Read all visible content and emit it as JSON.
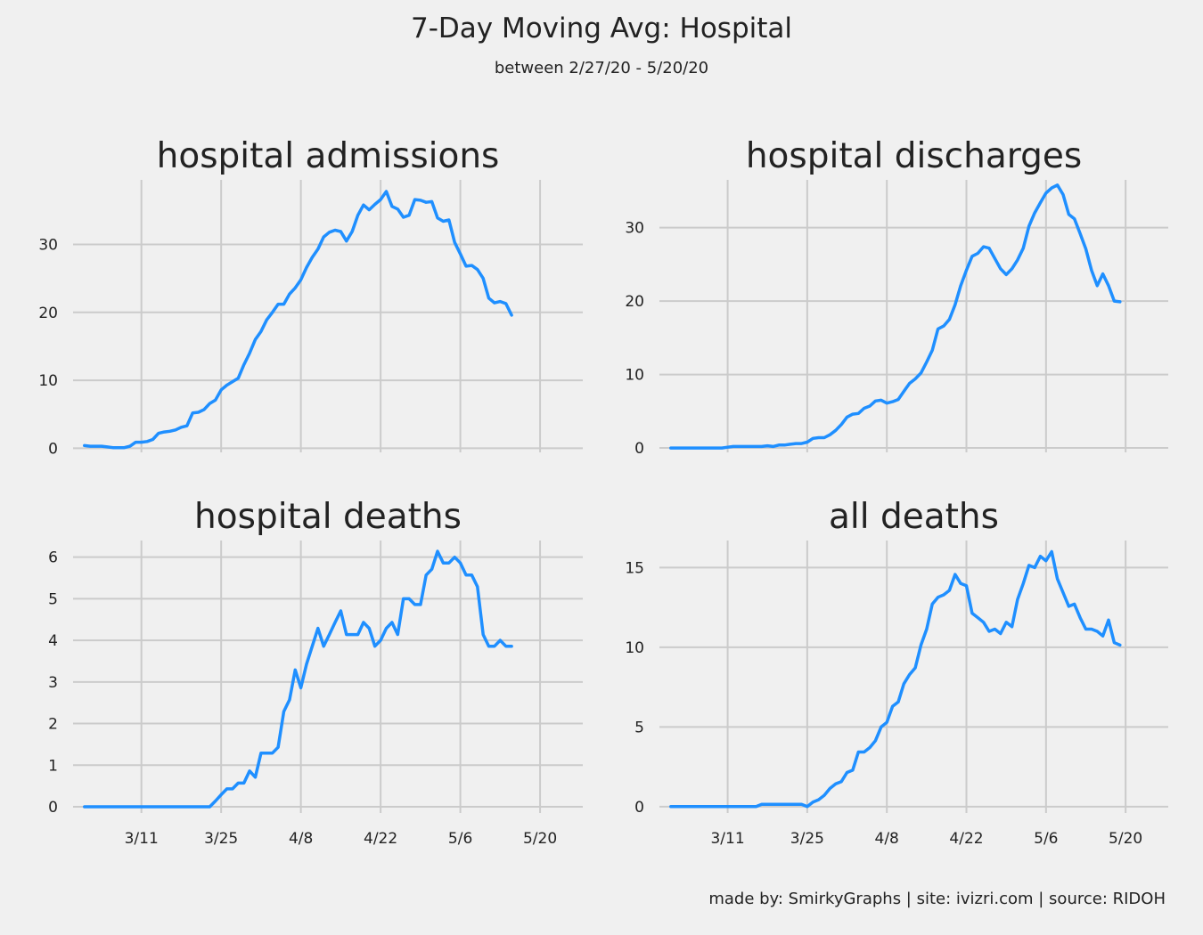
{
  "title": "7-Day Moving Avg: Hospital",
  "subtitle": "between 2/27/20 - 5/20/20",
  "footer": "made by: SmirkyGraphs  |  site: ivizri.com  |  source: RIDOH",
  "colors": {
    "line": "#1f8fff",
    "grid": "#cbcbcb",
    "background": "#f0f0f0"
  },
  "chart_data": [
    {
      "type": "line",
      "title": "hospital admissions",
      "start_date": "2020-03-01",
      "x_ticks": [
        "3/11",
        "3/25",
        "4/8",
        "4/22",
        "5/6",
        "5/20"
      ],
      "x_tick_labels_shown": false,
      "ylim": [
        -0.6,
        39.5
      ],
      "y_ticks": [
        0,
        10,
        20,
        30
      ],
      "grid": true,
      "values": [
        0.4,
        0.3,
        0.3,
        0.3,
        0.2,
        0.1,
        0.1,
        0.1,
        0.3,
        0.9,
        0.9,
        1.0,
        1.3,
        2.2,
        2.4,
        2.5,
        2.7,
        3.1,
        3.3,
        5.2,
        5.3,
        5.7,
        6.6,
        7.1,
        8.6,
        9.3,
        9.8,
        10.3,
        12.3,
        14.0,
        16.0,
        17.2,
        18.9,
        20.0,
        21.2,
        21.2,
        22.7,
        23.6,
        24.8,
        26.6,
        28.1,
        29.3,
        31.1,
        31.8,
        32.1,
        31.9,
        30.5,
        31.9,
        34.3,
        35.8,
        35.1,
        35.9,
        36.6,
        37.8,
        35.6,
        35.2,
        34.0,
        34.3,
        36.6,
        36.5,
        36.2,
        36.3,
        33.9,
        33.4,
        33.6,
        30.3,
        28.6,
        26.8,
        26.9,
        26.3,
        25.0,
        22.1,
        21.4,
        21.6,
        21.3,
        19.6
      ]
    },
    {
      "type": "line",
      "title": "hospital discharges",
      "start_date": "2020-03-01",
      "x_ticks": [
        "3/11",
        "3/25",
        "4/8",
        "4/22",
        "5/6",
        "5/20"
      ],
      "x_tick_labels_shown": false,
      "ylim": [
        -0.6,
        36.5
      ],
      "y_ticks": [
        0,
        10,
        20,
        30
      ],
      "grid": true,
      "values": [
        0,
        0,
        0,
        0,
        0,
        0,
        0,
        0,
        0,
        0,
        0.1,
        0.2,
        0.2,
        0.2,
        0.2,
        0.2,
        0.2,
        0.3,
        0.2,
        0.4,
        0.4,
        0.5,
        0.6,
        0.6,
        0.8,
        1.3,
        1.4,
        1.4,
        1.8,
        2.4,
        3.2,
        4.2,
        4.6,
        4.7,
        5.4,
        5.7,
        6.4,
        6.5,
        6.1,
        6.3,
        6.6,
        7.7,
        8.8,
        9.4,
        10.2,
        11.7,
        13.3,
        16.2,
        16.6,
        17.5,
        19.5,
        22.1,
        24.2,
        26.1,
        26.5,
        27.4,
        27.2,
        25.8,
        24.4,
        23.6,
        24.4,
        25.6,
        27.2,
        30.2,
        32.0,
        33.4,
        34.7,
        35.4,
        35.8,
        34.5,
        31.8,
        31.2,
        29.2,
        27.1,
        24.2,
        22.1,
        23.7,
        22.1,
        20.0,
        19.9
      ]
    },
    {
      "type": "line",
      "title": "hospital deaths",
      "start_date": "2020-03-01",
      "x_ticks": [
        "3/11",
        "3/25",
        "4/8",
        "4/22",
        "5/6",
        "5/20"
      ],
      "x_tick_labels_shown": true,
      "ylim": [
        -0.15,
        6.4
      ],
      "y_ticks": [
        0,
        1,
        2,
        3,
        4,
        5,
        6
      ],
      "grid": true,
      "values": [
        0,
        0,
        0,
        0,
        0,
        0,
        0,
        0,
        0,
        0,
        0,
        0,
        0,
        0,
        0,
        0,
        0,
        0,
        0,
        0,
        0,
        0,
        0,
        0.14,
        0.29,
        0.43,
        0.43,
        0.57,
        0.57,
        0.86,
        0.71,
        1.29,
        1.29,
        1.29,
        1.43,
        2.29,
        2.57,
        3.29,
        2.86,
        3.43,
        3.86,
        4.29,
        3.86,
        4.14,
        4.43,
        4.71,
        4.14,
        4.14,
        4.14,
        4.43,
        4.29,
        3.86,
        4.0,
        4.29,
        4.43,
        4.14,
        5.0,
        5.0,
        4.86,
        4.86,
        5.57,
        5.71,
        6.14,
        5.86,
        5.86,
        6.0,
        5.86,
        5.57,
        5.57,
        5.29,
        4.14,
        3.86,
        3.86,
        4.0,
        3.86,
        3.86
      ]
    },
    {
      "type": "line",
      "title": "all deaths",
      "start_date": "2020-03-01",
      "x_ticks": [
        "3/11",
        "3/25",
        "4/8",
        "4/22",
        "5/6",
        "5/20"
      ],
      "x_tick_labels_shown": true,
      "ylim": [
        -0.4,
        16.7
      ],
      "y_ticks": [
        0,
        5,
        10,
        15
      ],
      "grid": true,
      "values": [
        0,
        0,
        0,
        0,
        0,
        0,
        0,
        0,
        0,
        0,
        0,
        0,
        0,
        0,
        0,
        0,
        0.14,
        0.14,
        0.14,
        0.14,
        0.14,
        0.14,
        0.14,
        0.14,
        0.0,
        0.29,
        0.43,
        0.71,
        1.14,
        1.43,
        1.57,
        2.14,
        2.29,
        3.43,
        3.43,
        3.71,
        4.14,
        5.0,
        5.29,
        6.29,
        6.57,
        7.71,
        8.29,
        8.71,
        10.14,
        11.14,
        12.71,
        13.14,
        13.29,
        13.57,
        14.57,
        14.0,
        13.86,
        12.14,
        11.86,
        11.57,
        11.0,
        11.14,
        10.86,
        11.57,
        11.29,
        13.0,
        14.0,
        15.14,
        15.0,
        15.71,
        15.43,
        16.0,
        14.29,
        13.43,
        12.57,
        12.71,
        11.86,
        11.14,
        11.14,
        11.0,
        10.71,
        11.71,
        10.29,
        10.14
      ]
    }
  ]
}
